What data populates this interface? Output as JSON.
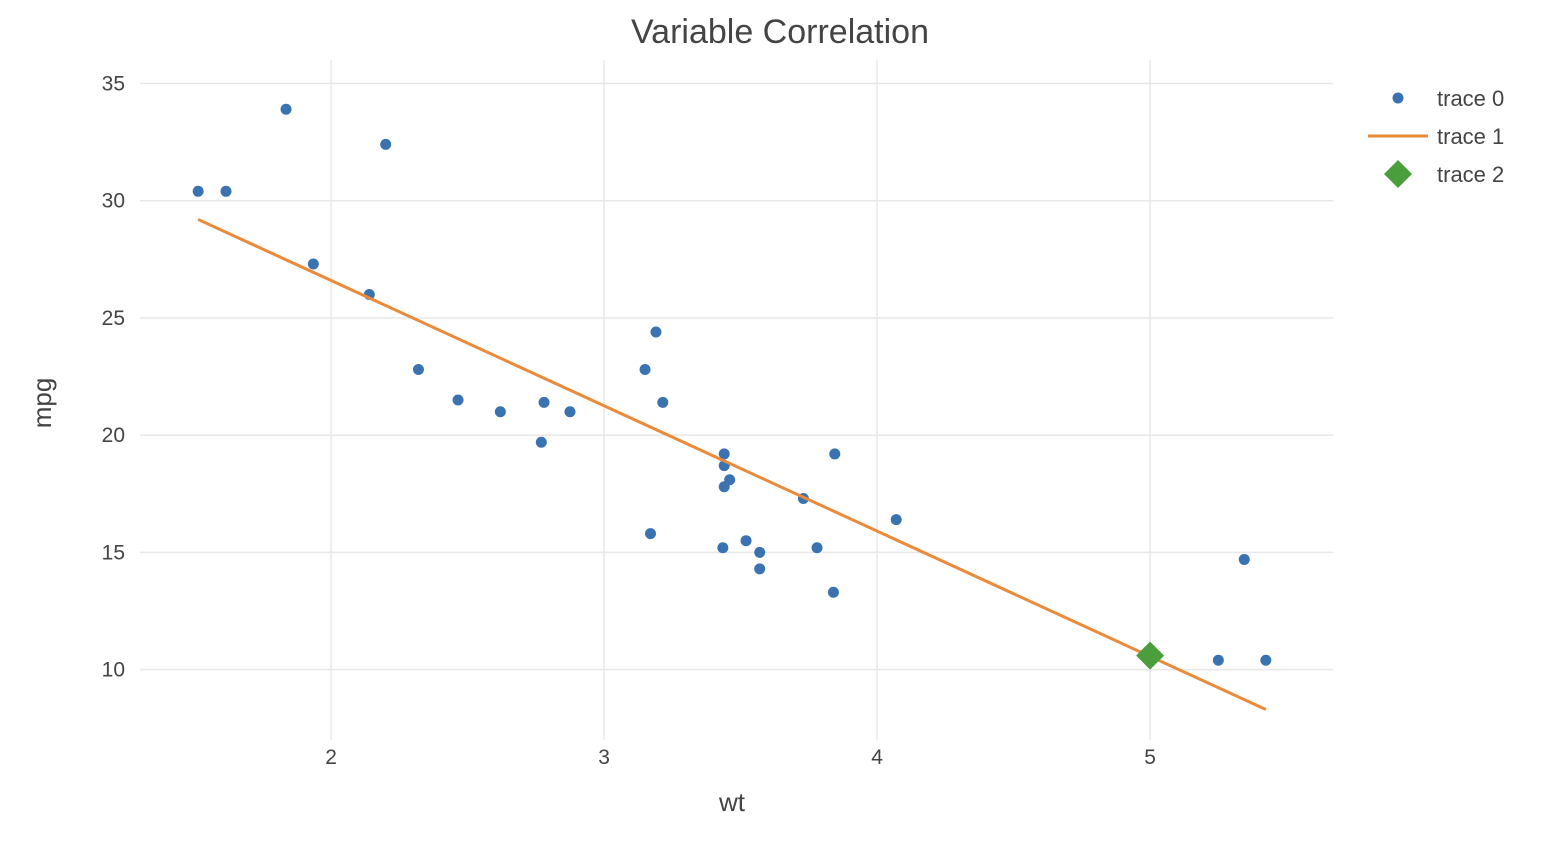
{
  "chart_data": {
    "type": "scatter",
    "title": "Variable Correlation",
    "xlabel": "wt",
    "ylabel": "mpg",
    "xlim": [
      1.3,
      5.67
    ],
    "ylim": [
      7,
      36
    ],
    "x_ticks": [
      2,
      3,
      4,
      5
    ],
    "y_ticks": [
      10,
      15,
      20,
      25,
      30,
      35
    ],
    "grid": true,
    "legend_position": "top-right",
    "series": [
      {
        "name": "trace 0",
        "mode": "markers",
        "marker": "circle",
        "color": "#3a73b0",
        "points": [
          [
            1.513,
            30.4
          ],
          [
            1.615,
            30.4
          ],
          [
            1.835,
            33.9
          ],
          [
            1.935,
            27.3
          ],
          [
            2.14,
            26.0
          ],
          [
            2.2,
            32.4
          ],
          [
            2.32,
            22.8
          ],
          [
            2.465,
            21.5
          ],
          [
            2.62,
            21.0
          ],
          [
            2.77,
            19.7
          ],
          [
            2.78,
            21.4
          ],
          [
            2.875,
            21.0
          ],
          [
            3.15,
            22.8
          ],
          [
            3.17,
            15.8
          ],
          [
            3.19,
            24.4
          ],
          [
            3.215,
            21.4
          ],
          [
            3.435,
            15.2
          ],
          [
            3.44,
            18.7
          ],
          [
            3.44,
            19.2
          ],
          [
            3.44,
            17.8
          ],
          [
            3.46,
            18.1
          ],
          [
            3.52,
            15.5
          ],
          [
            3.57,
            15.0
          ],
          [
            3.57,
            14.3
          ],
          [
            3.73,
            17.3
          ],
          [
            3.78,
            15.2
          ],
          [
            3.84,
            13.3
          ],
          [
            3.845,
            19.2
          ],
          [
            4.07,
            16.4
          ],
          [
            5.25,
            10.4
          ],
          [
            5.345,
            14.7
          ],
          [
            5.424,
            10.4
          ]
        ]
      },
      {
        "name": "trace 1",
        "mode": "lines",
        "color": "#ea8a3b",
        "points": [
          [
            1.513,
            29.2
          ],
          [
            5.424,
            8.3
          ]
        ]
      },
      {
        "name": "trace 2",
        "mode": "markers",
        "marker": "diamond",
        "color": "#4a9e3c",
        "points": [
          [
            5.0,
            10.6
          ]
        ]
      }
    ]
  }
}
